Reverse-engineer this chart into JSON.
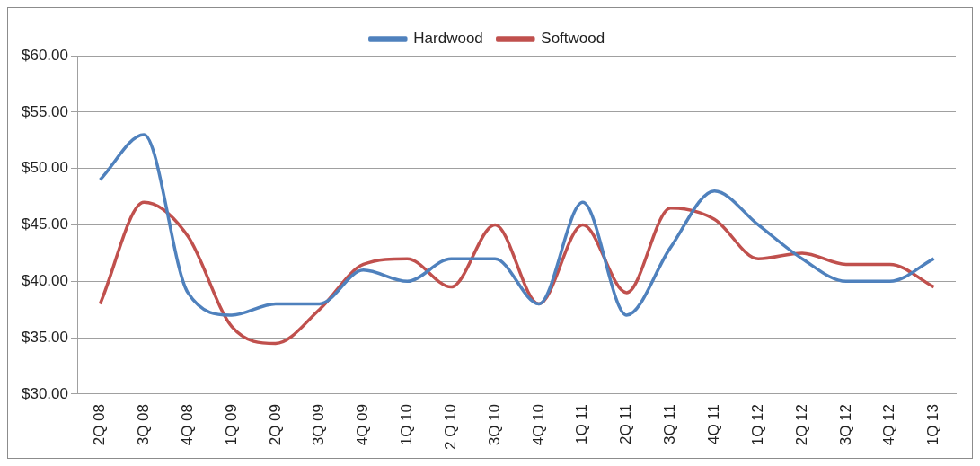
{
  "chart_data": {
    "type": "line",
    "categories": [
      "2Q 08",
      "3Q 08",
      "4Q 08",
      "1Q 09",
      "2Q 09",
      "3Q 09",
      "4Q 09",
      "1Q 10",
      "2 Q 10",
      "3Q 10",
      "4Q 10",
      "1Q 11",
      "2Q 11",
      "3Q 11",
      "4Q 11",
      "1Q 12",
      "2Q 12",
      "3Q 12",
      "4Q 12",
      "1Q 13"
    ],
    "series": [
      {
        "name": "Hardwood",
        "color": "#4f81bd",
        "values": [
          49,
          53,
          39,
          37,
          38,
          38,
          41,
          40,
          42,
          42,
          38,
          47,
          37,
          43,
          48,
          45,
          42,
          40,
          40,
          42
        ]
      },
      {
        "name": "Softwood",
        "color": "#c0504d",
        "values": [
          38,
          47,
          44,
          36,
          34.5,
          37.5,
          41.5,
          42,
          39.5,
          45,
          38,
          45,
          39,
          46.5,
          45.5,
          42,
          42.5,
          41.5,
          41.5,
          39.5
        ]
      }
    ],
    "ylim": [
      30,
      60
    ],
    "yticks": [
      {
        "value": 30,
        "label": "$30.00"
      },
      {
        "value": 35,
        "label": "$35.00"
      },
      {
        "value": 40,
        "label": "$40.00"
      },
      {
        "value": 45,
        "label": "$45.00"
      },
      {
        "value": 50,
        "label": "$50.00"
      },
      {
        "value": 55,
        "label": "$55.00"
      },
      {
        "value": 60,
        "label": "$60.00"
      }
    ],
    "grid": "y",
    "legend": "top",
    "marker": "none",
    "line_style": "solid"
  }
}
